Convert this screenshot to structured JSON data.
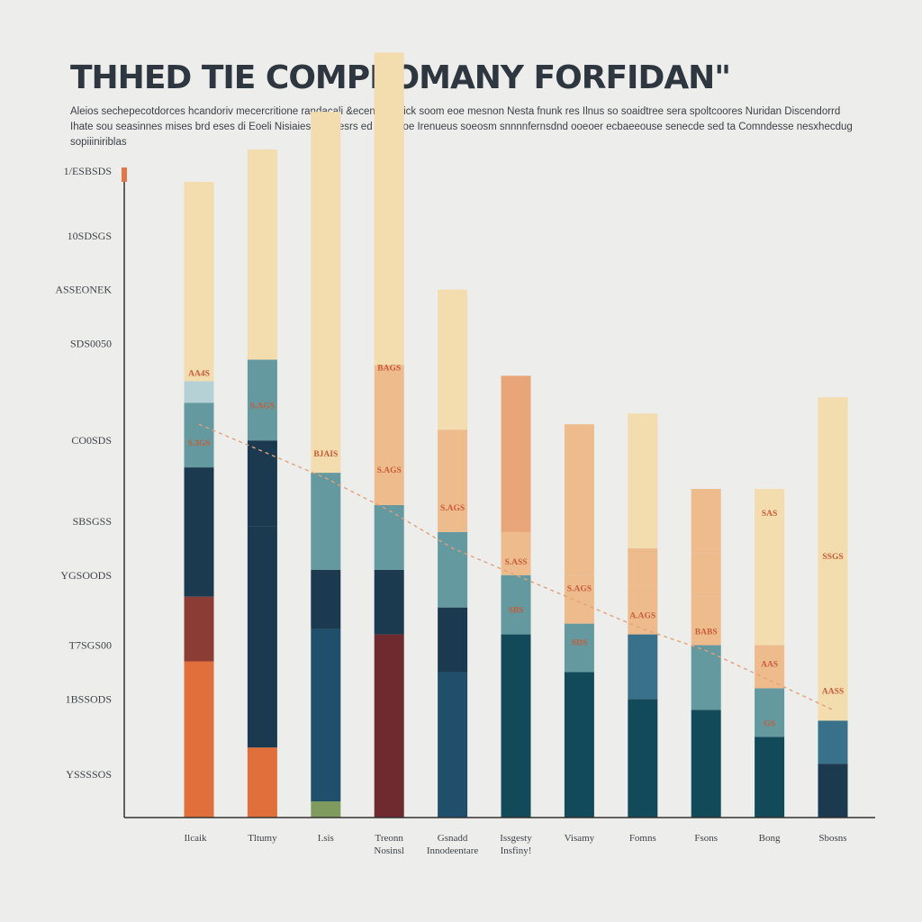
{
  "title": "THHED TIE COMPPOMANY FORFIDAN\"",
  "subtitle": "Aleios sechepecotdorces hcandoriv mecercritione randacali &ecenerali dick soom eoe mesnon Nesta fnunk res Ilnus so soaidtree sera spoltcoores Nuridan Discendorrd Ihate sou seasinnes mises brd eses di Eoeli Nisiaies onibcesrs ed Ines soe Irenueus soeosm snnnnfernsdnd ooeoer ecbaeeouse senecde sed ta Comndesse nesxhecdug sopiiiniriblas",
  "colors": {
    "background": "#ededeb",
    "cream": "#f3dcae",
    "peach": "#eebb8d",
    "apricot": "#e8a678",
    "light_teal": "#b6d1d6",
    "teal": "#63999f",
    "steel_blue": "#39718a",
    "navy": "#1b3a4f",
    "dark_blue": "#204f6b",
    "petrol": "#124a5a",
    "brick": "#8b3c35",
    "dark_red": "#6e2a2f",
    "orange": "#e06f3b",
    "olive_green": "#7f9b5e",
    "trend_line": "#e3a07a",
    "axis": "#333333",
    "label_text": "#c85d38"
  },
  "chart_data": {
    "type": "bar",
    "stacked": true,
    "ylim": [
      0,
      12
    ],
    "grid": false,
    "legend": "none",
    "y_ticks": [
      {
        "value": 12.0,
        "label": "1/ESBSDS"
      },
      {
        "value": 10.8,
        "label": "10SDSGS"
      },
      {
        "value": 9.8,
        "label": "ASSEONEK"
      },
      {
        "value": 8.8,
        "label": "SDS0050"
      },
      {
        "value": 7.0,
        "label": "CO0SDS"
      },
      {
        "value": 5.5,
        "label": "SBSGSS"
      },
      {
        "value": 4.5,
        "label": "YGSOODS"
      },
      {
        "value": 3.2,
        "label": "T7SGS00"
      },
      {
        "value": 2.2,
        "label": "1BSSODS"
      },
      {
        "value": 0.8,
        "label": "YSSSSOS"
      }
    ],
    "categories": [
      [
        "Ilcaik"
      ],
      [
        "Tltumy"
      ],
      [
        "I.sis"
      ],
      [
        "Treonn",
        "Nosinsl"
      ],
      [
        "Gsnadd",
        "Innodeentare"
      ],
      [
        "Issgesty",
        "Insfiny!"
      ],
      [
        "Visamy"
      ],
      [
        "Fomns"
      ],
      [
        "Fsons"
      ],
      [
        "Bong"
      ],
      [
        "Sbosns"
      ]
    ],
    "stacks": [
      [
        {
          "value": 2.9,
          "color": "orange"
        },
        {
          "value": 1.2,
          "color": "brick"
        },
        {
          "value": 2.4,
          "color": "navy"
        },
        {
          "value": 1.2,
          "color": "teal"
        },
        {
          "value": 0.4,
          "color": "light_teal"
        },
        {
          "value": 3.7,
          "color": "cream"
        }
      ],
      [
        {
          "value": 1.3,
          "color": "orange"
        },
        {
          "value": 4.1,
          "color": "navy"
        },
        {
          "value": 1.6,
          "color": "navy"
        },
        {
          "value": 1.5,
          "color": "teal"
        },
        {
          "value": 3.9,
          "color": "cream"
        }
      ],
      [
        {
          "value": 0.3,
          "color": "olive_green"
        },
        {
          "value": 3.2,
          "color": "dark_blue"
        },
        {
          "value": 1.1,
          "color": "navy"
        },
        {
          "value": 1.8,
          "color": "teal"
        },
        {
          "value": 6.7,
          "color": "cream"
        }
      ],
      [
        {
          "value": 3.4,
          "color": "dark_red"
        },
        {
          "value": 1.2,
          "color": "navy"
        },
        {
          "value": 1.2,
          "color": "teal"
        },
        {
          "value": 2.6,
          "color": "peach"
        },
        {
          "value": 5.8,
          "color": "cream"
        }
      ],
      [
        {
          "value": 2.7,
          "color": "dark_blue"
        },
        {
          "value": 1.2,
          "color": "navy"
        },
        {
          "value": 1.4,
          "color": "teal"
        },
        {
          "value": 1.9,
          "color": "peach"
        },
        {
          "value": 2.6,
          "color": "cream"
        }
      ],
      [
        {
          "value": 3.4,
          "color": "petrol"
        },
        {
          "value": 1.1,
          "color": "teal"
        },
        {
          "value": 0.8,
          "color": "peach"
        },
        {
          "value": 2.9,
          "color": "apricot"
        }
      ],
      [
        {
          "value": 2.7,
          "color": "petrol"
        },
        {
          "value": 0.9,
          "color": "teal"
        },
        {
          "value": 0.9,
          "color": "peach"
        },
        {
          "value": 2.8,
          "color": "peach"
        }
      ],
      [
        {
          "value": 2.2,
          "color": "petrol"
        },
        {
          "value": 1.2,
          "color": "steel_blue"
        },
        {
          "value": 0.9,
          "color": "peach"
        },
        {
          "value": 0.7,
          "color": "peach"
        },
        {
          "value": 2.5,
          "color": "cream"
        }
      ],
      [
        {
          "value": 2.0,
          "color": "petrol"
        },
        {
          "value": 1.2,
          "color": "teal"
        },
        {
          "value": 0.9,
          "color": "peach"
        },
        {
          "value": 0.8,
          "color": "peach"
        },
        {
          "value": 1.2,
          "color": "peach"
        }
      ],
      [
        {
          "value": 1.5,
          "color": "petrol"
        },
        {
          "value": 0.9,
          "color": "teal"
        },
        {
          "value": 0.8,
          "color": "peach"
        },
        {
          "value": 2.9,
          "color": "cream"
        }
      ],
      [
        {
          "value": 1.0,
          "color": "navy"
        },
        {
          "value": 0.8,
          "color": "steel_blue"
        },
        {
          "value": 6.0,
          "color": "cream"
        }
      ]
    ],
    "data_labels": [
      {
        "bar": 0,
        "value": 8.2,
        "text": "AA4S"
      },
      {
        "bar": 0,
        "value": 6.9,
        "text": "S.3GS",
        "light": true
      },
      {
        "bar": 1,
        "value": 7.6,
        "text": "S.AGS"
      },
      {
        "bar": 2,
        "value": 6.7,
        "text": "BJAIS"
      },
      {
        "bar": 3,
        "value": 8.3,
        "text": "BAGS"
      },
      {
        "bar": 3,
        "value": 6.4,
        "text": "S.AGS"
      },
      {
        "bar": 4,
        "value": 5.7,
        "text": "S.AGS"
      },
      {
        "bar": 5,
        "value": 4.7,
        "text": "S.ASS"
      },
      {
        "bar": 5,
        "value": 3.8,
        "text": "SBS",
        "light": true
      },
      {
        "bar": 6,
        "value": 4.2,
        "text": "S.AGS"
      },
      {
        "bar": 6,
        "value": 3.2,
        "text": "SDS",
        "light": true
      },
      {
        "bar": 7,
        "value": 3.7,
        "text": "A.AGS"
      },
      {
        "bar": 8,
        "value": 3.4,
        "text": "BABS"
      },
      {
        "bar": 9,
        "value": 5.6,
        "text": "SAS"
      },
      {
        "bar": 9,
        "value": 2.8,
        "text": "AAS"
      },
      {
        "bar": 9,
        "value": 1.7,
        "text": "GS",
        "light": true
      },
      {
        "bar": 10,
        "value": 4.8,
        "text": "SSGS"
      },
      {
        "bar": 10,
        "value": 2.3,
        "text": "AASS"
      }
    ],
    "trend_line": [
      [
        0,
        7.3
      ],
      [
        1,
        6.8
      ],
      [
        2,
        6.3
      ],
      [
        3,
        5.7
      ],
      [
        4,
        5.0
      ],
      [
        7,
        3.5
      ],
      [
        8,
        3.1
      ],
      [
        10,
        2.0
      ]
    ]
  }
}
